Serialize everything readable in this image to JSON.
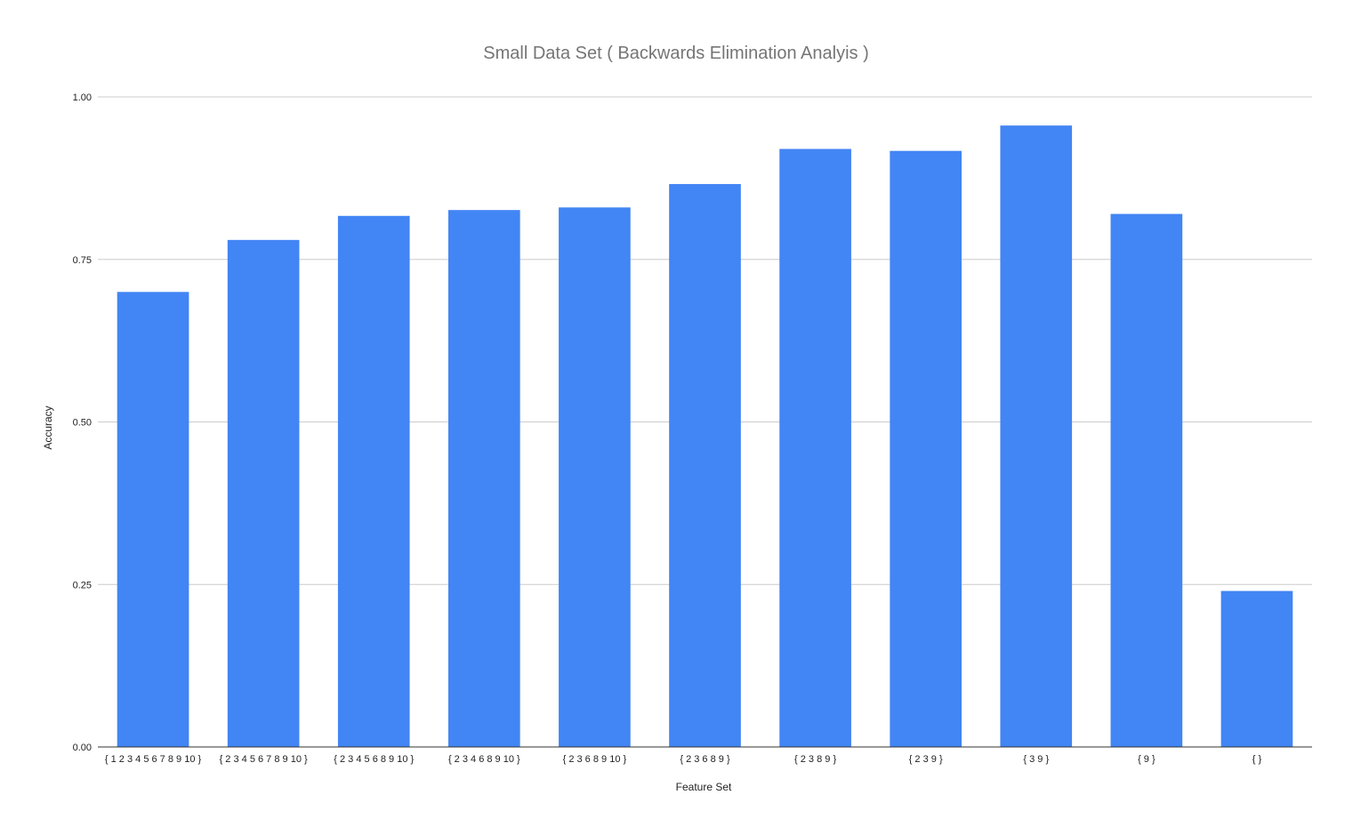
{
  "chart_data": {
    "type": "bar",
    "title": "Small Data Set ( Backwards Elimination Analyis )",
    "xlabel": "Feature Set",
    "ylabel": "Accuracy",
    "ylim": [
      0,
      1
    ],
    "yticks": [
      "0.00",
      "0.25",
      "0.50",
      "0.75",
      "1.00"
    ],
    "grid": true,
    "bar_color": "#4285f4",
    "categories": [
      "{ 1 2 3 4 5 6 7 8 9 10 }",
      "{ 2 3 4 5 6 7 8 9 10 }",
      "{ 2 3 4 5 6 8 9 10 }",
      "{ 2 3 4 6 8 9 10 }",
      "{ 2 3 6 8 9 10 }",
      "{ 2 3 6 8 9 }",
      "{ 2 3 8 9 }",
      "{ 2 3 9 }",
      "{ 3 9 }",
      "{ 9 }",
      "{ }"
    ],
    "values": [
      0.7,
      0.78,
      0.817,
      0.826,
      0.83,
      0.866,
      0.92,
      0.917,
      0.956,
      0.82,
      0.24
    ]
  }
}
